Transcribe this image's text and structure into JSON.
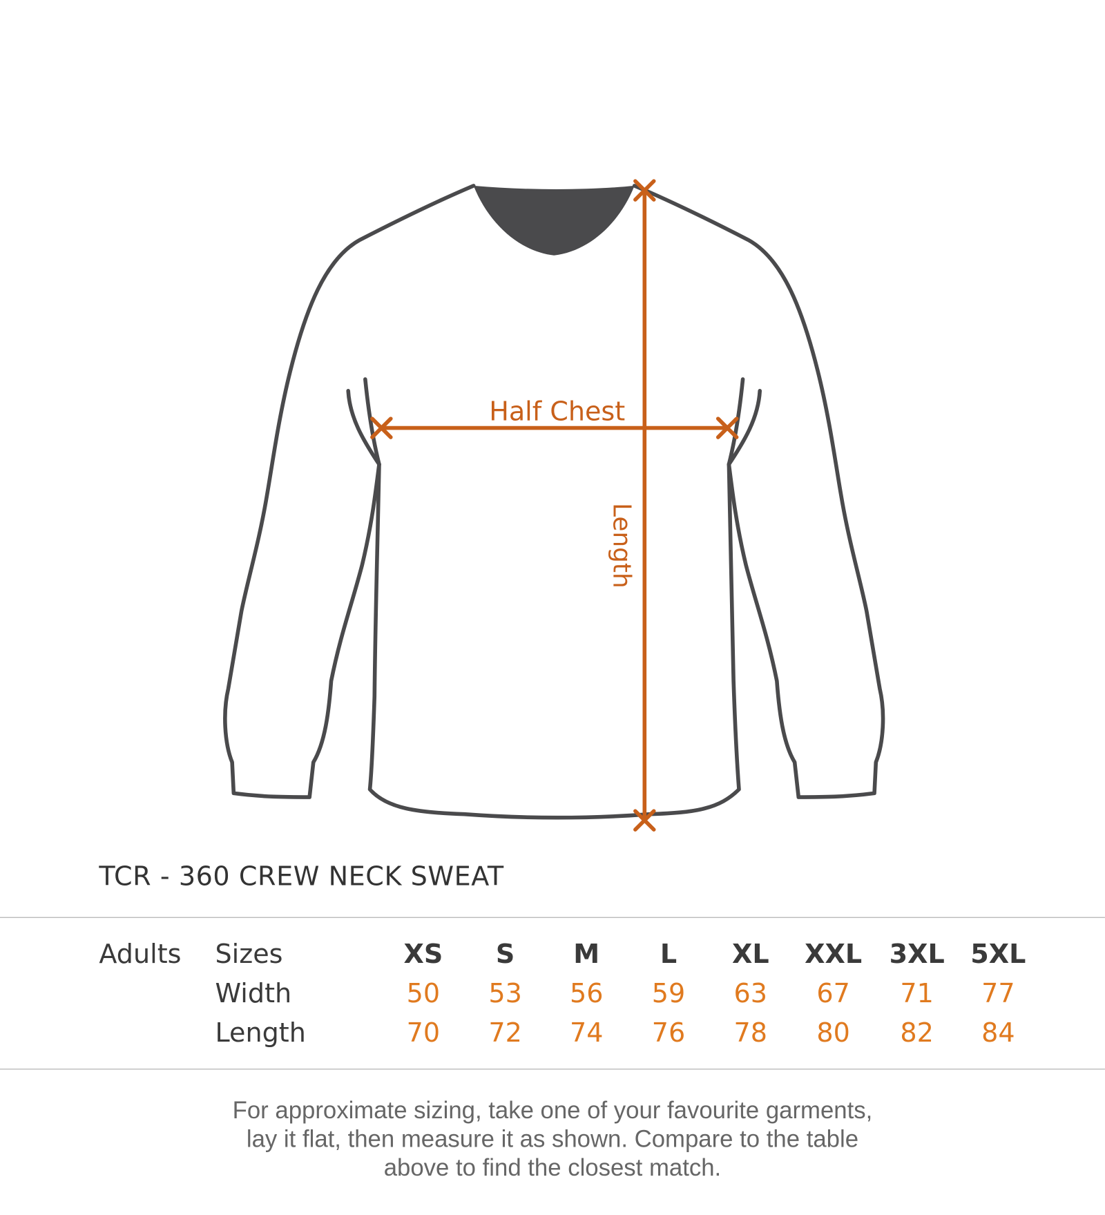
{
  "product_title": "TCR - 360 CREW NECK SWEAT",
  "diagram": {
    "half_chest_label": "Half Chest",
    "length_label": "Length",
    "measure_color": "#c8601a",
    "outline_color": "#4a4a4c"
  },
  "table": {
    "group_label": "Adults",
    "header_label": "Sizes",
    "sizes": [
      "XS",
      "S",
      "M",
      "L",
      "XL",
      "XXL",
      "3XL",
      "5XL"
    ],
    "rows": [
      {
        "label": "Width",
        "values": [
          "50",
          "53",
          "56",
          "59",
          "63",
          "67",
          "71",
          "77"
        ]
      },
      {
        "label": "Length",
        "values": [
          "70",
          "72",
          "74",
          "76",
          "78",
          "80",
          "82",
          "84"
        ]
      }
    ],
    "value_color": "#e07a1f"
  },
  "footer_lines": [
    "For approximate sizing, take one of your favourite garments,",
    "lay it flat, then measure it as shown. Compare to the table",
    "above to find the closest match."
  ]
}
